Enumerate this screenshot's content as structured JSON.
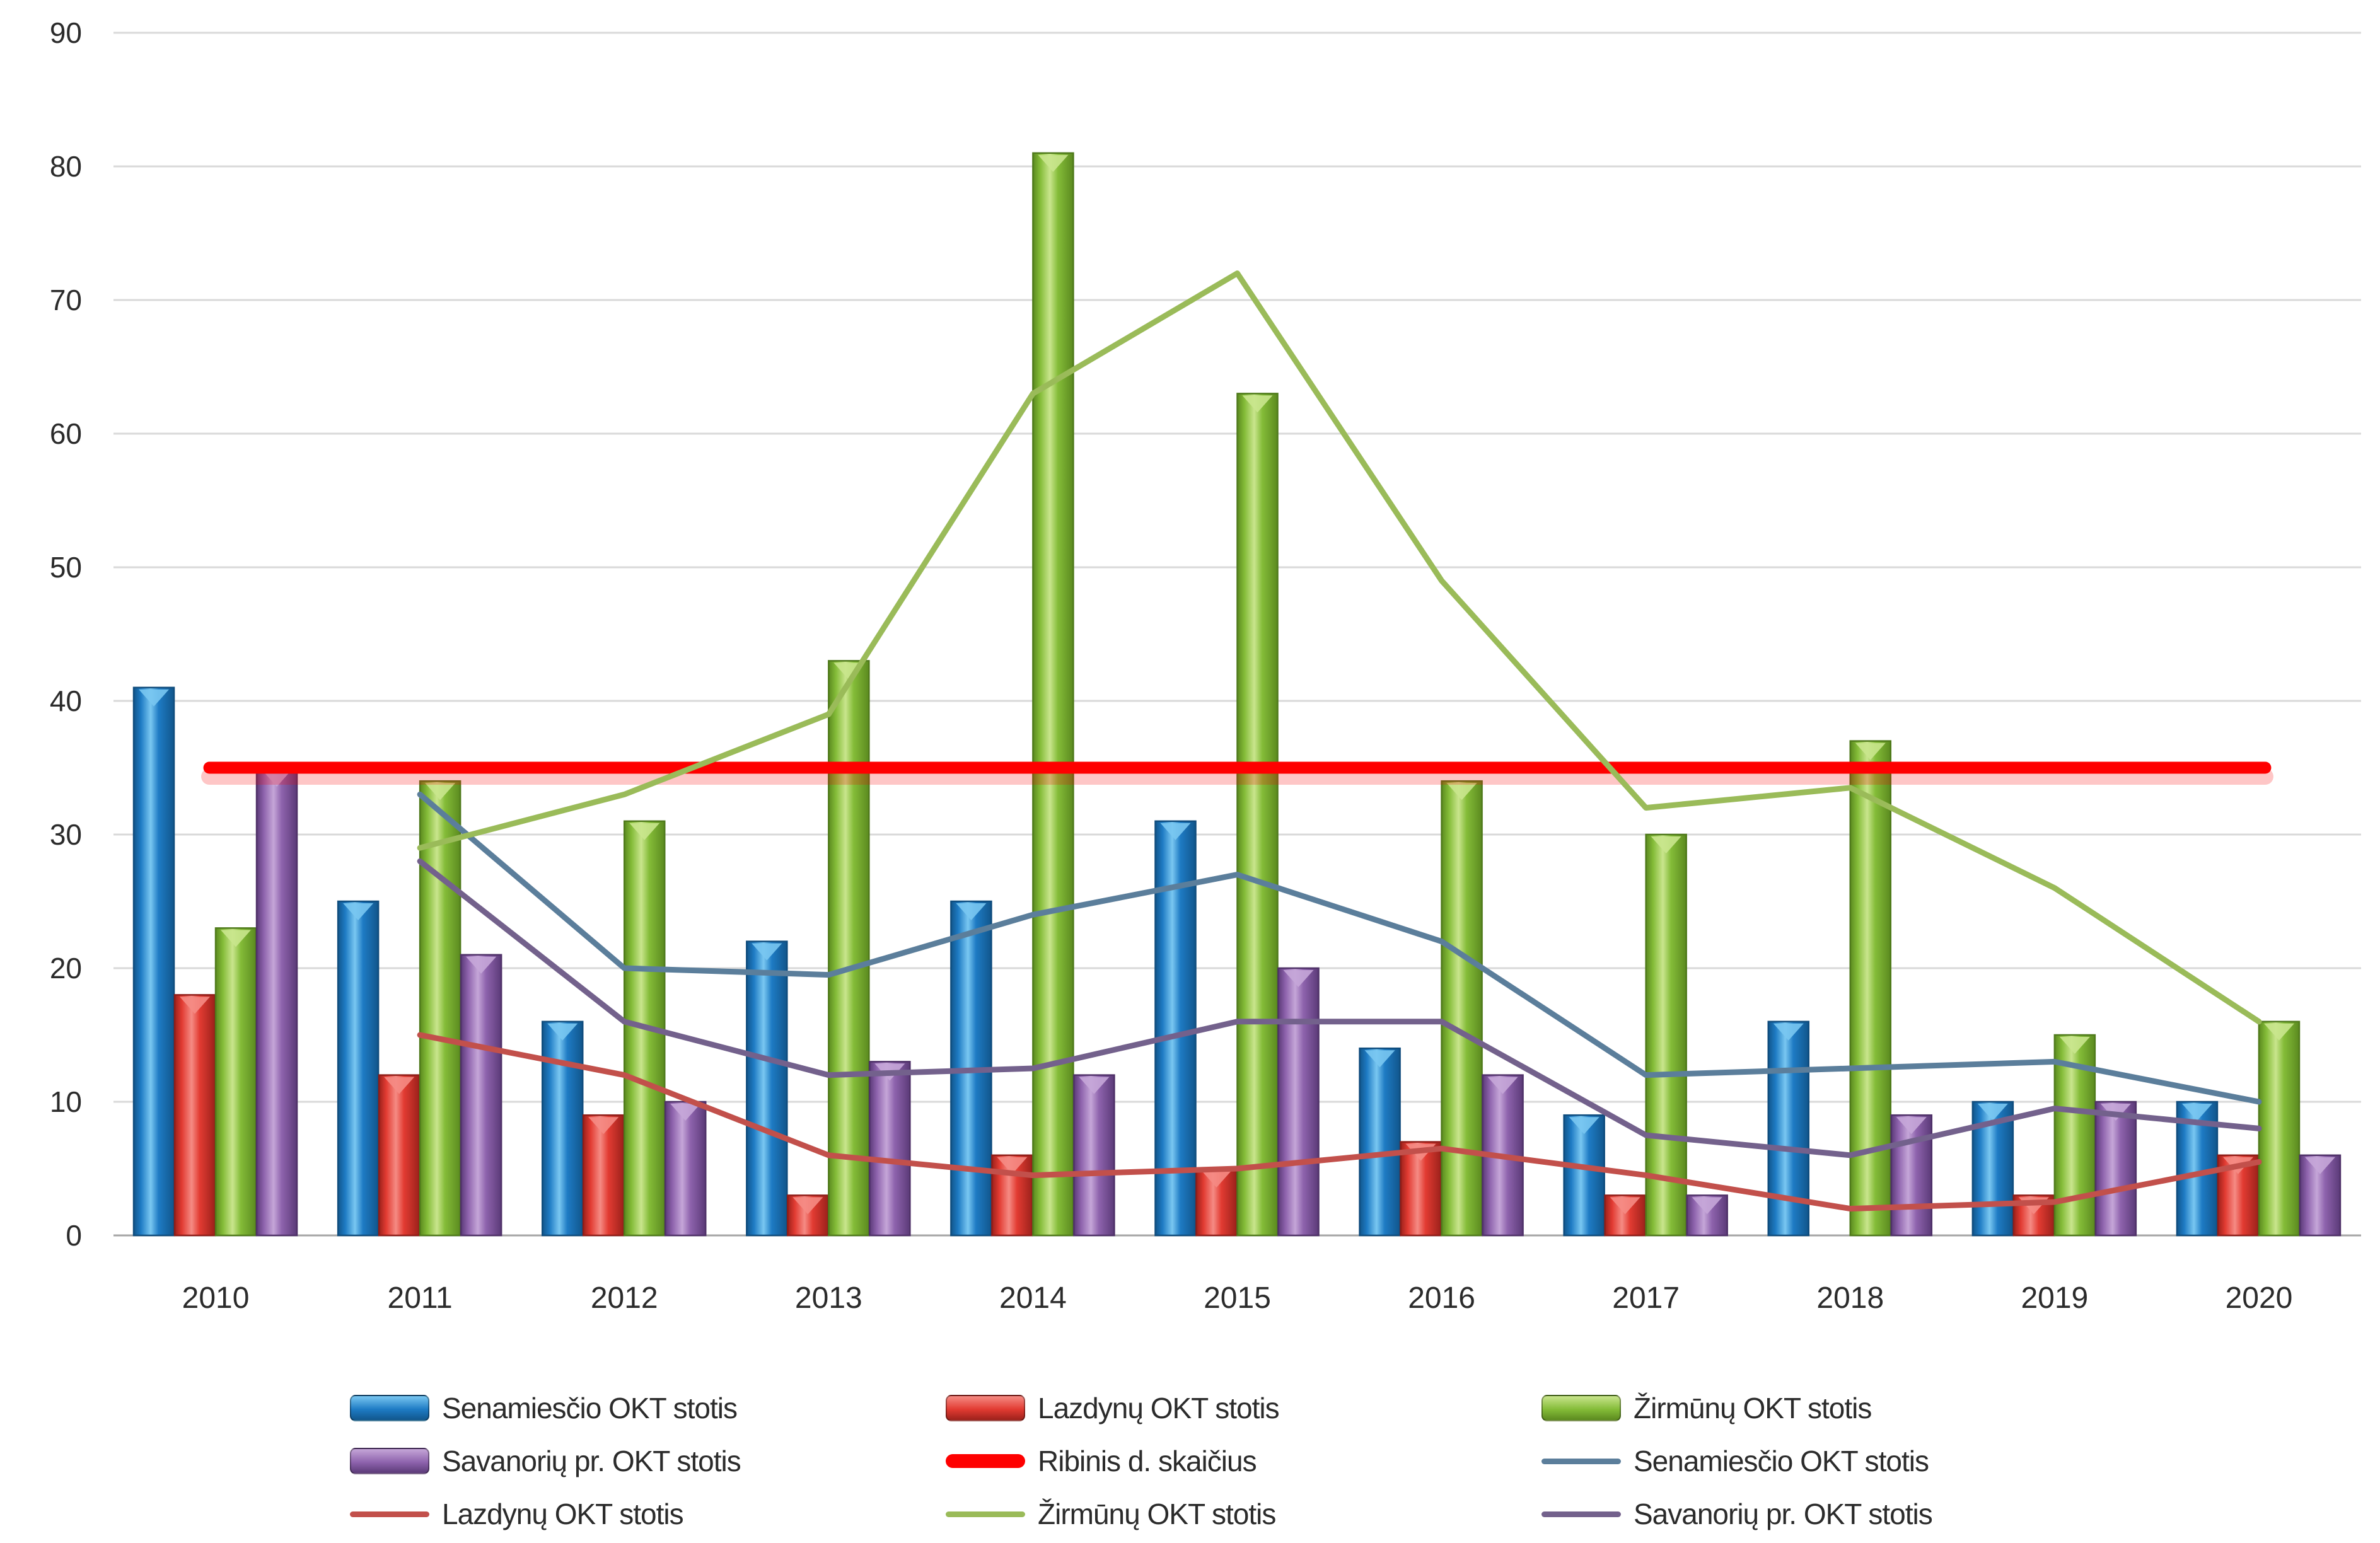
{
  "chart_data": {
    "type": "combo-bar-line",
    "title": "",
    "categories": [
      "2010",
      "2011",
      "2012",
      "2013",
      "2014",
      "2015",
      "2016",
      "2017",
      "2018",
      "2019",
      "2020"
    ],
    "y_axis": {
      "min": 0,
      "max": 90,
      "step": 10,
      "ticks": [
        "0",
        "10",
        "20",
        "30",
        "40",
        "50",
        "60",
        "70",
        "80",
        "90"
      ],
      "grid": true
    },
    "bar_series": [
      {
        "name": "Senamiesčio OKT stotis",
        "color_key": "blue",
        "values": [
          41,
          25,
          16,
          22,
          25,
          31,
          14,
          9,
          16,
          10,
          10
        ]
      },
      {
        "name": "Lazdynų OKT stotis",
        "color_key": "red",
        "values": [
          18,
          12,
          9,
          3,
          6,
          5,
          7,
          3,
          0,
          3,
          6
        ]
      },
      {
        "name": "Žirmūnų OKT stotis",
        "color_key": "green",
        "values": [
          23,
          34,
          31,
          43,
          81,
          63,
          34,
          30,
          37,
          15,
          16
        ]
      },
      {
        "name": "Savanorių pr. OKT stotis",
        "color_key": "purple",
        "values": [
          35,
          21,
          10,
          13,
          12,
          20,
          12,
          3,
          9,
          10,
          6
        ]
      }
    ],
    "threshold_series": {
      "name": "Ribinis d. skaičius",
      "value": 35,
      "color": "#fe0000"
    },
    "line_series": [
      {
        "name": "Senamiesčio OKT stotis",
        "color": "#5b7e9b",
        "values": [
          null,
          33,
          20,
          19.5,
          24,
          27,
          22,
          12,
          12.5,
          13,
          10
        ]
      },
      {
        "name": "Lazdynų OKT stotis",
        "color": "#c2504b",
        "values": [
          null,
          15,
          12,
          6,
          4.5,
          5,
          6.5,
          4.5,
          2,
          2.5,
          5.5
        ]
      },
      {
        "name": "Žirmūnų OKT stotis",
        "color": "#9abb59",
        "values": [
          null,
          29,
          33,
          39,
          63,
          72,
          49,
          32,
          33.5,
          26,
          16
        ]
      },
      {
        "name": "Savanorių pr. OKT stotis",
        "color": "#73618c",
        "values": [
          null,
          28,
          16,
          12,
          12.5,
          16,
          16,
          7.5,
          6,
          9.5,
          8
        ]
      }
    ],
    "legend": [
      {
        "type": "bar",
        "color_key": "blue",
        "label": "Senamiesčio OKT stotis"
      },
      {
        "type": "bar",
        "color_key": "red",
        "label": "Lazdynų OKT stotis"
      },
      {
        "type": "bar",
        "color_key": "green",
        "label": "Žirmūnų OKT stotis"
      },
      {
        "type": "bar",
        "color_key": "purple",
        "label": "Savanorių pr. OKT stotis"
      },
      {
        "type": "thick-line",
        "color": "#fe0000",
        "label": "Ribinis d. skaičius"
      },
      {
        "type": "line",
        "color": "#5b7e9b",
        "label": "Senamiesčio OKT stotis"
      },
      {
        "type": "line",
        "color": "#c2504b",
        "label": "Lazdynų OKT stotis"
      },
      {
        "type": "line",
        "color": "#9abb59",
        "label": "Žirmūnų OKT stotis"
      },
      {
        "type": "line",
        "color": "#73618c",
        "label": "Savanorių pr. OKT stotis"
      }
    ],
    "colors": {
      "blue": {
        "main": "#1e7bc4",
        "light": "#79c7f1",
        "dark": "#11568c",
        "edge": "#0f4c7d"
      },
      "red": {
        "main": "#e23b32",
        "light": "#f58b84",
        "dark": "#9c211b",
        "edge": "#8f1d18"
      },
      "green": {
        "main": "#84bc38",
        "light": "#c9e58d",
        "dark": "#5b8a1f",
        "edge": "#4f7a1b"
      },
      "purple": {
        "main": "#8e63ad",
        "light": "#c5a6d8",
        "dark": "#5b3a78",
        "edge": "#4f3168"
      },
      "gridline": "#d9d9d9",
      "axis_line": "#a6a6a6",
      "tick_text": "#2b2b2b"
    }
  }
}
